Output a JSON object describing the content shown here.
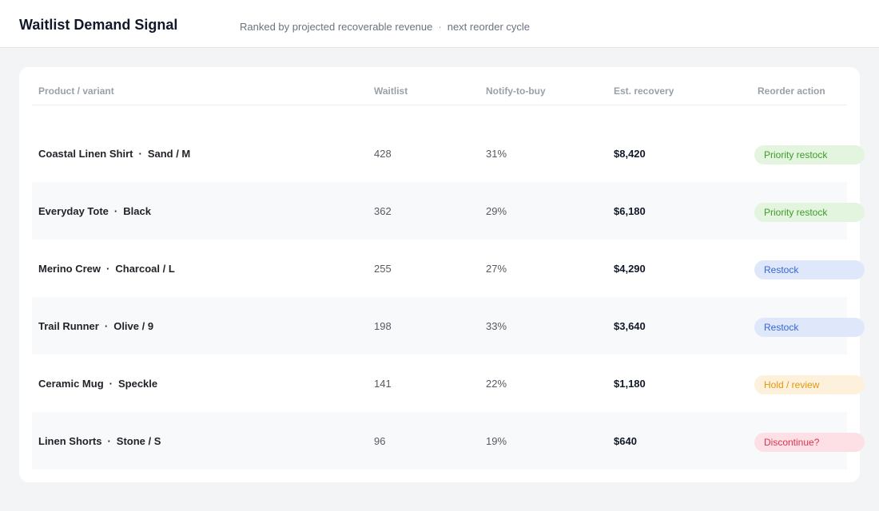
{
  "header": {
    "title": "Waitlist Demand Signal",
    "subtitle_main": "Ranked by projected recoverable revenue",
    "subtitle_separator": "·",
    "subtitle_secondary": "next reorder cycle"
  },
  "table": {
    "columns": {
      "product": "Product / variant",
      "waitlist": "Waitlist",
      "notify": "Notify-to-buy",
      "recovery": "Est. recovery",
      "action": "Reorder action"
    },
    "variant_separator": "·",
    "rows": [
      {
        "product": "Coastal Linen Shirt",
        "variant": "Sand / M",
        "waitlist": "428",
        "notify": "31%",
        "recovery": "$8,420",
        "action": "Priority restock",
        "action_type": "priority"
      },
      {
        "product": "Everyday Tote",
        "variant": "Black",
        "waitlist": "362",
        "notify": "29%",
        "recovery": "$6,180",
        "action": "Priority restock",
        "action_type": "priority"
      },
      {
        "product": "Merino Crew",
        "variant": "Charcoal / L",
        "waitlist": "255",
        "notify": "27%",
        "recovery": "$4,290",
        "action": "Restock",
        "action_type": "restock"
      },
      {
        "product": "Trail Runner",
        "variant": "Olive / 9",
        "waitlist": "198",
        "notify": "33%",
        "recovery": "$3,640",
        "action": "Restock",
        "action_type": "restock"
      },
      {
        "product": "Ceramic Mug",
        "variant": "Speckle",
        "waitlist": "141",
        "notify": "22%",
        "recovery": "$1,180",
        "action": "Hold / review",
        "action_type": "hold"
      },
      {
        "product": "Linen Shorts",
        "variant": "Stone / S",
        "waitlist": "96",
        "notify": "19%",
        "recovery": "$640",
        "action": "Discontinue?",
        "action_type": "discontinue"
      }
    ]
  },
  "colors": {
    "priority": "#3f9b2b",
    "restock": "#3567d6",
    "hold": "#e0980f",
    "discontinue": "#d9364f"
  }
}
